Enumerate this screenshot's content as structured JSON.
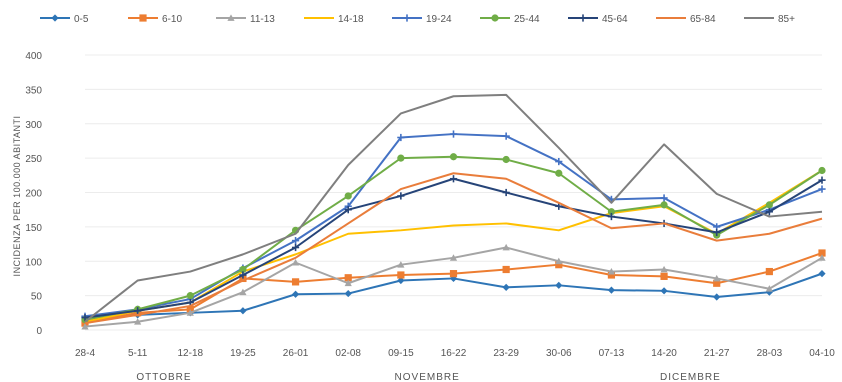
{
  "chart_data": {
    "type": "line",
    "ylabel": "INCIDENZA PER 100.000 ABITANTI",
    "ylim": [
      0,
      400
    ],
    "yticks": [
      0,
      50,
      100,
      150,
      200,
      250,
      300,
      350,
      400
    ],
    "ytick_labels": [
      "0",
      "50",
      "100",
      "150",
      "200",
      "250",
      "300",
      "350",
      "400"
    ],
    "categories": [
      "28-4",
      "5-11",
      "12-18",
      "19-25",
      "26-01",
      "02-08",
      "09-15",
      "16-22",
      "23-29",
      "30-06",
      "07-13",
      "14-20",
      "21-27",
      "28-03",
      "04-10"
    ],
    "month_groups": [
      {
        "label": "OTTOBRE",
        "center_index": 1.5
      },
      {
        "label": "NOVEMBRE",
        "center_index": 6.5
      },
      {
        "label": "DICEMBRE",
        "center_index": 11.5
      }
    ],
    "grid": true,
    "legend_position": "top",
    "series": [
      {
        "name": "0-5",
        "color": "#2e75b6",
        "marker": "diamond",
        "values": [
          15,
          22,
          25,
          28,
          52,
          53,
          72,
          75,
          62,
          65,
          58,
          57,
          48,
          55,
          82
        ]
      },
      {
        "name": "6-10",
        "color": "#ed7d31",
        "marker": "square",
        "values": [
          10,
          25,
          30,
          75,
          70,
          76,
          80,
          82,
          88,
          95,
          80,
          78,
          68,
          85,
          112
        ]
      },
      {
        "name": "11-13",
        "color": "#a5a5a5",
        "marker": "triangle",
        "values": [
          5,
          12,
          25,
          55,
          98,
          68,
          95,
          105,
          120,
          100,
          85,
          88,
          75,
          60,
          105
        ]
      },
      {
        "name": "14-18",
        "color": "#ffc000",
        "marker": "none",
        "values": [
          12,
          28,
          40,
          85,
          110,
          140,
          145,
          152,
          155,
          145,
          170,
          180,
          140,
          185,
          232
        ]
      },
      {
        "name": "19-24",
        "color": "#4472c4",
        "marker": "plus",
        "values": [
          20,
          30,
          45,
          90,
          130,
          180,
          280,
          285,
          282,
          245,
          190,
          192,
          150,
          175,
          205
        ]
      },
      {
        "name": "25-44",
        "color": "#70ad47",
        "marker": "circle",
        "values": [
          15,
          30,
          50,
          88,
          145,
          195,
          250,
          252,
          248,
          228,
          172,
          182,
          138,
          182,
          232
        ]
      },
      {
        "name": "45-64",
        "color": "#264478",
        "marker": "plus",
        "values": [
          18,
          28,
          40,
          80,
          120,
          175,
          195,
          220,
          200,
          180,
          165,
          155,
          142,
          172,
          218
        ]
      },
      {
        "name": "65-84",
        "color": "#e97d3b",
        "marker": "none",
        "values": [
          10,
          22,
          35,
          72,
          105,
          155,
          205,
          228,
          220,
          185,
          148,
          155,
          130,
          140,
          162
        ]
      },
      {
        "name": "85+",
        "color": "#7f7f7f",
        "marker": "none",
        "values": [
          12,
          72,
          85,
          110,
          140,
          240,
          315,
          340,
          342,
          265,
          185,
          270,
          198,
          165,
          172
        ]
      }
    ]
  }
}
